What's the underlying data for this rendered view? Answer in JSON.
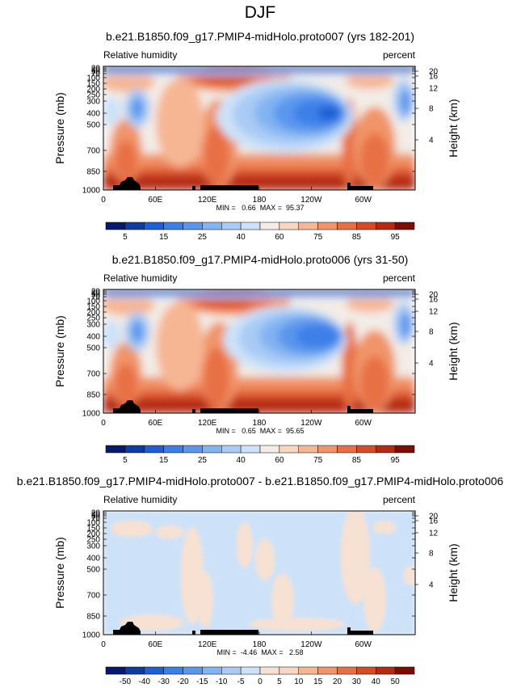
{
  "figure_title": "DJF",
  "chart_data": [
    {
      "type": "heatmap",
      "title": "b.e21.B1850.f09_g17.PMIP4-midHolo.proto007 (yrs 182-201)",
      "left_label": "Relative humidity",
      "right_label": "percent",
      "ylabel": "Pressure (mb)",
      "ylabel_right": "Height (km)",
      "x_ticks": [
        "0",
        "60E",
        "120E",
        "180",
        "120W",
        "60W"
      ],
      "y_ticks": [
        "20",
        "30",
        "50",
        "70",
        "100",
        "150",
        "200",
        "250",
        "300",
        "400",
        "500",
        "700",
        "850",
        "1000"
      ],
      "height_ticks": [
        "20",
        "16",
        "12",
        "8",
        "4"
      ],
      "stats": "MIN =   0.66  MAX =  95.37",
      "colorbar_labels": [
        "5",
        "15",
        "25",
        "40",
        "60",
        "75",
        "85",
        "95"
      ],
      "colorbar_colors": [
        "#07186f",
        "#0d3ca3",
        "#1f5fd6",
        "#3c7fe8",
        "#5a96ee",
        "#82b3f2",
        "#a9cbf5",
        "#cde2f8",
        "#f3ece7",
        "#f7d6c4",
        "#f6b694",
        "#f19469",
        "#e86f44",
        "#d64c26",
        "#b52b12",
        "#7e0c05"
      ],
      "ylim_mb": [
        1000,
        20
      ],
      "xlim_deg": [
        0,
        360
      ],
      "scheme": "rh007"
    },
    {
      "type": "heatmap",
      "title": "b.e21.B1850.f09_g17.PMIP4-midHolo.proto006 (yrs 31-50)",
      "left_label": "Relative humidity",
      "right_label": "percent",
      "ylabel": "Pressure (mb)",
      "ylabel_right": "Height (km)",
      "x_ticks": [
        "0",
        "60E",
        "120E",
        "180",
        "120W",
        "60W"
      ],
      "y_ticks": [
        "20",
        "30",
        "50",
        "70",
        "100",
        "150",
        "200",
        "250",
        "300",
        "400",
        "500",
        "700",
        "850",
        "1000"
      ],
      "height_ticks": [
        "20",
        "16",
        "12",
        "8",
        "4"
      ],
      "stats": "MIN =   0.65  MAX =  95.65",
      "colorbar_labels": [
        "5",
        "15",
        "25",
        "40",
        "60",
        "75",
        "85",
        "95"
      ],
      "colorbar_colors": [
        "#07186f",
        "#0d3ca3",
        "#1f5fd6",
        "#3c7fe8",
        "#5a96ee",
        "#82b3f2",
        "#a9cbf5",
        "#cde2f8",
        "#f3ece7",
        "#f7d6c4",
        "#f6b694",
        "#f19469",
        "#e86f44",
        "#d64c26",
        "#b52b12",
        "#7e0c05"
      ],
      "ylim_mb": [
        1000,
        20
      ],
      "xlim_deg": [
        0,
        360
      ],
      "scheme": "rh006"
    },
    {
      "type": "heatmap",
      "title": "b.e21.B1850.f09_g17.PMIP4-midHolo.proto007 - b.e21.B1850.f09_g17.PMIP4-midHolo.proto006",
      "left_label": "Relative humidity",
      "right_label": "percent",
      "ylabel": "Pressure (mb)",
      "ylabel_right": "Height (km)",
      "x_ticks": [
        "0",
        "60E",
        "120E",
        "180",
        "120W",
        "60W"
      ],
      "y_ticks": [
        "20",
        "30",
        "50",
        "70",
        "100",
        "150",
        "200",
        "250",
        "300",
        "400",
        "500",
        "700",
        "850",
        "1000"
      ],
      "height_ticks": [
        "20",
        "16",
        "12",
        "8",
        "4"
      ],
      "stats": "MIN =  -4.46  MAX =   2.58",
      "colorbar_labels": [
        "-50",
        "-40",
        "-30",
        "-20",
        "-15",
        "-10",
        "-5",
        "0",
        "5",
        "10",
        "15",
        "20",
        "30",
        "40",
        "50"
      ],
      "colorbar_colors": [
        "#07186f",
        "#0d3ca3",
        "#1f5fd6",
        "#3c7fe8",
        "#5a96ee",
        "#82b3f2",
        "#a9cbf5",
        "#cde2f8",
        "#f7e1d2",
        "#f7d6c4",
        "#f6b694",
        "#f19469",
        "#e86f44",
        "#d64c26",
        "#b52b12",
        "#7e0c05"
      ],
      "ylim_mb": [
        1000,
        20
      ],
      "xlim_deg": [
        0,
        360
      ],
      "scheme": "diff"
    }
  ]
}
